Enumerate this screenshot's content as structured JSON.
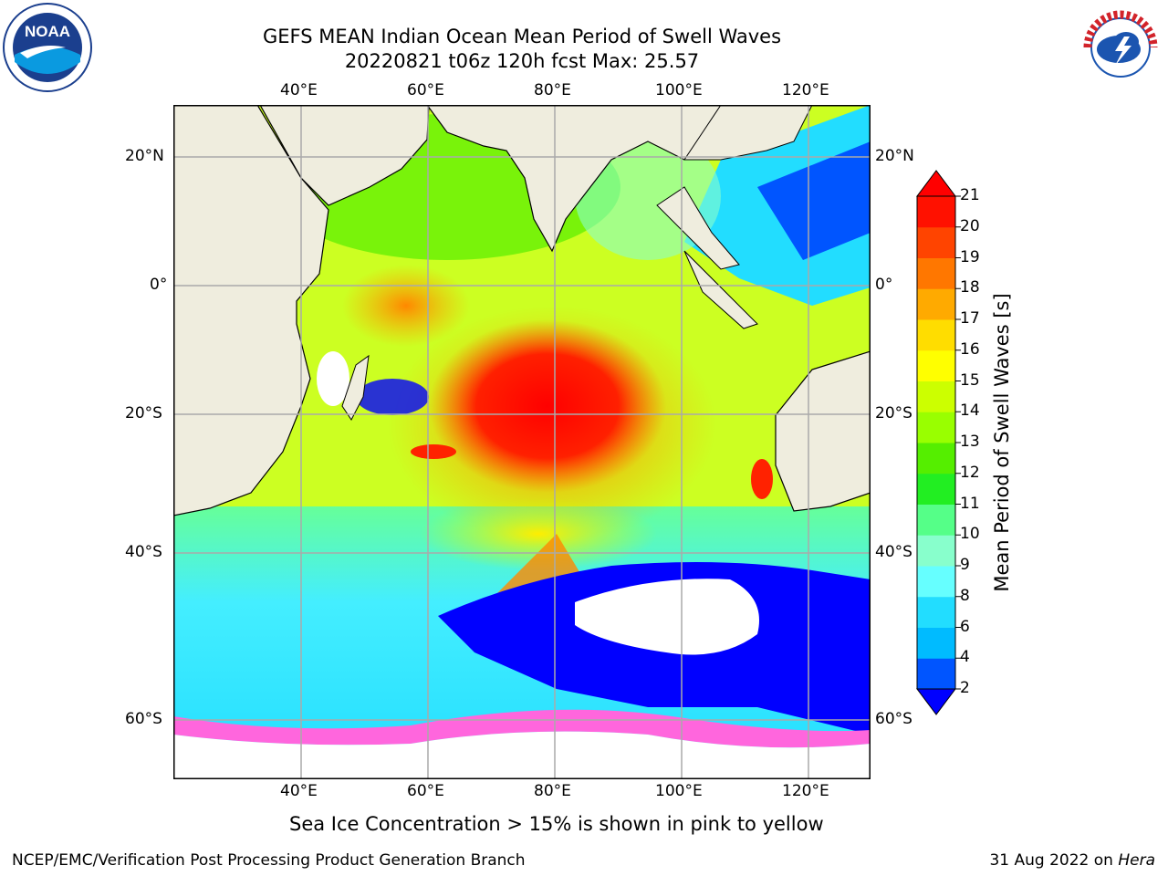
{
  "title_line1": "GEFS MEAN Indian Ocean Mean Period of Swell Waves",
  "title_line2": "20220821 t06z 120h fcst   Max: 25.57",
  "lon_ticks": [
    "40°E",
    "60°E",
    "80°E",
    "100°E",
    "120°E"
  ],
  "lat_ticks": [
    "20°N",
    "0°",
    "20°S",
    "40°S",
    "60°S"
  ],
  "colorbar": {
    "title": "Mean Period of Swell Waves [s]",
    "labels": [
      "2",
      "4",
      "6",
      "8",
      "9",
      "10",
      "11",
      "12",
      "13",
      "14",
      "15",
      "16",
      "17",
      "18",
      "19",
      "20",
      "21"
    ],
    "colors": [
      "#0000ff",
      "#0055ff",
      "#00bbff",
      "#22ddff",
      "#66ffff",
      "#88ffcc",
      "#55ff88",
      "#22ee22",
      "#55ee00",
      "#99ff00",
      "#ccff00",
      "#ffff00",
      "#ffdd00",
      "#ffaa00",
      "#ff7700",
      "#ff4400",
      "#ff1100",
      "#ff0000"
    ]
  },
  "land_color": "#efedde",
  "ice_note": "Sea Ice Concentration > 15% is shown in pink to yellow",
  "footer_left": "NCEP/EMC/Verification Post Processing Product Generation Branch",
  "footer_date": "31 Aug 2022 on",
  "footer_machine": "Hera",
  "logos": [
    "noaa-logo",
    "nws-logo"
  ]
}
